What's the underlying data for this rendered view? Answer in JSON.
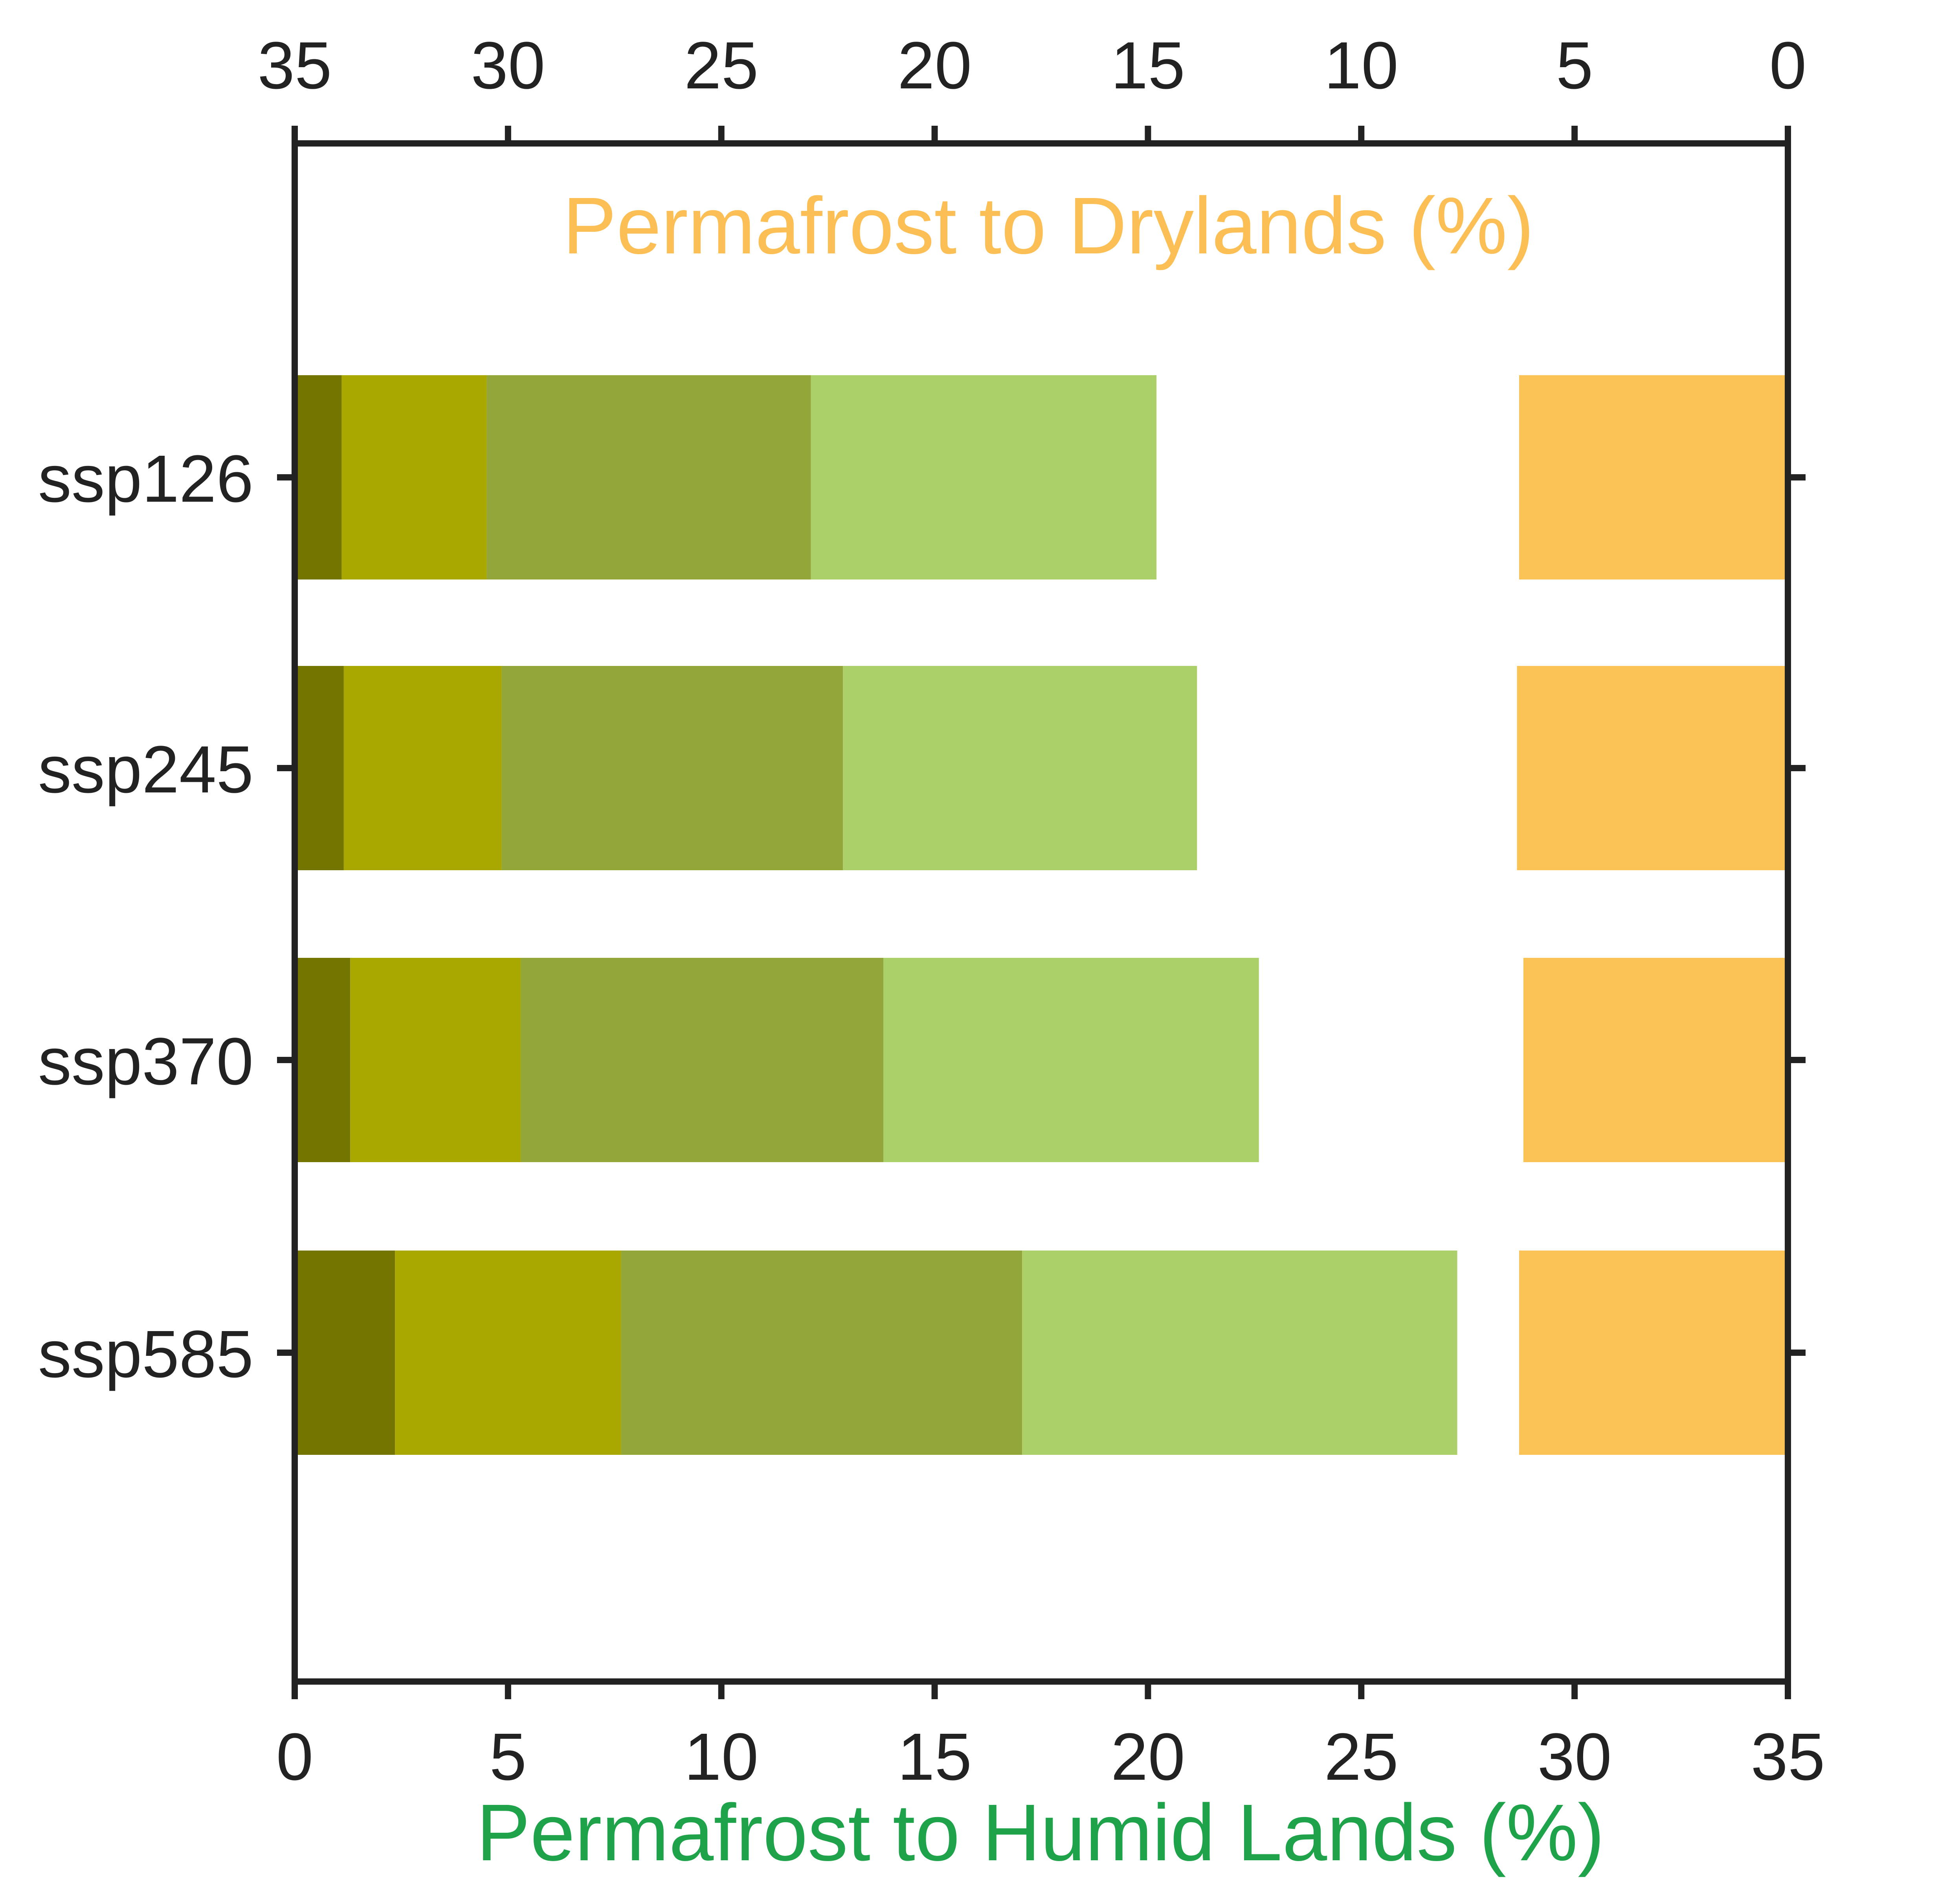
{
  "chart_data": {
    "type": "bar",
    "orientation": "horizontal",
    "stacked": true,
    "categories": [
      "ssp126",
      "ssp245",
      "ssp370",
      "ssp585"
    ],
    "bottom_axis": {
      "label": "Permafrost to Humid Lands (%)",
      "label_color": "#1fa34a",
      "range": [
        0,
        35
      ],
      "ticks": [
        0,
        5,
        10,
        15,
        20,
        25,
        30,
        35
      ]
    },
    "top_axis": {
      "label": "Permafrost to Drylands (%)",
      "label_color": "#fbbf55",
      "range": [
        35,
        0
      ],
      "reversed": true,
      "ticks": [
        35,
        30,
        25,
        20,
        15,
        10,
        5,
        0
      ]
    },
    "humid_series": [
      {
        "color": "#747400",
        "values": [
          1.1,
          1.15,
          1.3,
          2.35
        ]
      },
      {
        "color": "#a8a800",
        "values": [
          3.4,
          3.7,
          4.0,
          5.3
        ]
      },
      {
        "color": "#93a639",
        "values": [
          7.6,
          8.0,
          8.5,
          9.4
        ]
      },
      {
        "color": "#abcf69",
        "values": [
          8.1,
          8.3,
          8.8,
          10.2
        ]
      }
    ],
    "dryland_series": [
      {
        "color": "#fbc255",
        "values": [
          6.3,
          6.35,
          6.2,
          6.3
        ]
      }
    ],
    "grid": false
  }
}
